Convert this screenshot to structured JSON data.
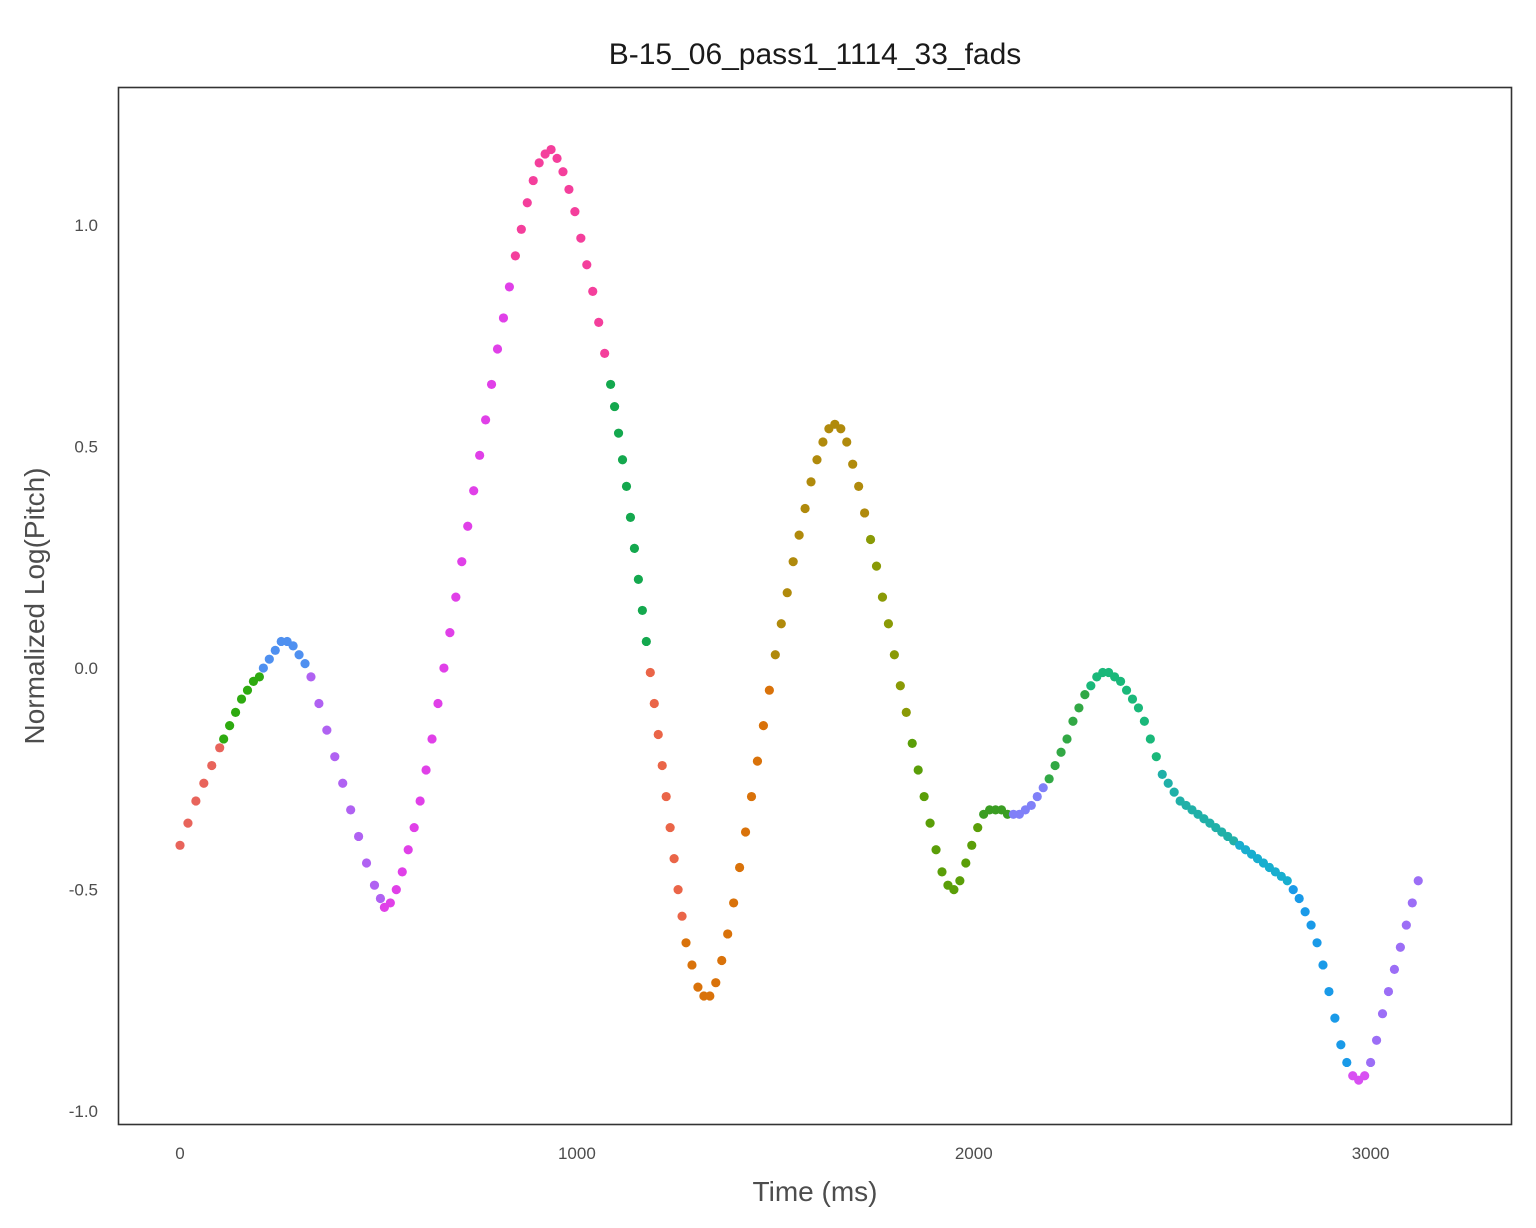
{
  "chart_data": {
    "type": "scatter",
    "title": "B-15_06_pass1_1114_33_fads",
    "xlabel": "Time (ms)",
    "ylabel": "Normalized Log(Pitch)",
    "xlim": [
      -155,
      3355
    ],
    "ylim": [
      -1.03,
      1.31
    ],
    "xticks": [
      0,
      1000,
      2000,
      3000
    ],
    "xtick_labels": [
      "0",
      "1000",
      "2000",
      "3000"
    ],
    "yticks": [
      -1.0,
      -0.5,
      0.0,
      0.5,
      1.0
    ],
    "ytick_labels": [
      "-1.0",
      "-0.5",
      "0.0",
      "0.5",
      "1.0"
    ],
    "grid": false,
    "legend": "none",
    "series": [
      {
        "color": "#e8645b",
        "points": [
          [
            0,
            -0.4
          ],
          [
            20,
            -0.35
          ],
          [
            40,
            -0.3
          ],
          [
            60,
            -0.26
          ],
          [
            80,
            -0.22
          ],
          [
            100,
            -0.18
          ]
        ]
      },
      {
        "color": "#2eaa10",
        "points": [
          [
            110,
            -0.16
          ],
          [
            125,
            -0.13
          ],
          [
            140,
            -0.1
          ],
          [
            155,
            -0.07
          ],
          [
            170,
            -0.05
          ],
          [
            185,
            -0.03
          ],
          [
            200,
            -0.02
          ]
        ]
      },
      {
        "color": "#4f90f0",
        "points": [
          [
            210,
            0.0
          ],
          [
            225,
            0.02
          ],
          [
            240,
            0.04
          ],
          [
            255,
            0.06
          ],
          [
            270,
            0.06
          ],
          [
            285,
            0.05
          ],
          [
            300,
            0.03
          ],
          [
            315,
            0.01
          ]
        ]
      },
      {
        "color": "#b062f2",
        "points": [
          [
            330,
            -0.02
          ],
          [
            350,
            -0.08
          ],
          [
            370,
            -0.14
          ],
          [
            390,
            -0.2
          ],
          [
            410,
            -0.26
          ],
          [
            430,
            -0.32
          ],
          [
            450,
            -0.38
          ],
          [
            470,
            -0.44
          ],
          [
            490,
            -0.49
          ],
          [
            505,
            -0.52
          ]
        ]
      },
      {
        "color": "#e040e8",
        "points": [
          [
            515,
            -0.54
          ],
          [
            530,
            -0.53
          ],
          [
            545,
            -0.5
          ],
          [
            560,
            -0.46
          ],
          [
            575,
            -0.41
          ],
          [
            590,
            -0.36
          ],
          [
            605,
            -0.3
          ],
          [
            620,
            -0.23
          ],
          [
            635,
            -0.16
          ],
          [
            650,
            -0.08
          ],
          [
            665,
            0.0
          ],
          [
            680,
            0.08
          ],
          [
            695,
            0.16
          ],
          [
            710,
            0.24
          ],
          [
            725,
            0.32
          ],
          [
            740,
            0.4
          ],
          [
            755,
            0.48
          ],
          [
            770,
            0.56
          ],
          [
            785,
            0.64
          ],
          [
            800,
            0.72
          ],
          [
            815,
            0.79
          ],
          [
            830,
            0.86
          ]
        ]
      },
      {
        "color": "#f43f9c",
        "points": [
          [
            845,
            0.93
          ],
          [
            860,
            0.99
          ],
          [
            875,
            1.05
          ],
          [
            890,
            1.1
          ],
          [
            905,
            1.14
          ],
          [
            920,
            1.16
          ],
          [
            935,
            1.17
          ],
          [
            950,
            1.15
          ],
          [
            965,
            1.12
          ],
          [
            980,
            1.08
          ],
          [
            995,
            1.03
          ],
          [
            1010,
            0.97
          ],
          [
            1025,
            0.91
          ],
          [
            1040,
            0.85
          ],
          [
            1055,
            0.78
          ],
          [
            1070,
            0.71
          ]
        ]
      },
      {
        "color": "#14a84e",
        "points": [
          [
            1085,
            0.64
          ],
          [
            1095,
            0.59
          ],
          [
            1105,
            0.53
          ],
          [
            1115,
            0.47
          ],
          [
            1125,
            0.41
          ],
          [
            1135,
            0.34
          ],
          [
            1145,
            0.27
          ],
          [
            1155,
            0.2
          ],
          [
            1165,
            0.13
          ],
          [
            1175,
            0.06
          ]
        ]
      },
      {
        "color": "#ea6548",
        "points": [
          [
            1185,
            -0.01
          ],
          [
            1195,
            -0.08
          ],
          [
            1205,
            -0.15
          ],
          [
            1215,
            -0.22
          ],
          [
            1225,
            -0.29
          ],
          [
            1235,
            -0.36
          ],
          [
            1245,
            -0.43
          ],
          [
            1255,
            -0.5
          ],
          [
            1265,
            -0.56
          ]
        ]
      },
      {
        "color": "#d9720a",
        "points": [
          [
            1275,
            -0.62
          ],
          [
            1290,
            -0.67
          ],
          [
            1305,
            -0.72
          ],
          [
            1320,
            -0.74
          ],
          [
            1335,
            -0.74
          ],
          [
            1350,
            -0.71
          ],
          [
            1365,
            -0.66
          ],
          [
            1380,
            -0.6
          ],
          [
            1395,
            -0.53
          ],
          [
            1410,
            -0.45
          ],
          [
            1425,
            -0.37
          ],
          [
            1440,
            -0.29
          ],
          [
            1455,
            -0.21
          ],
          [
            1470,
            -0.13
          ],
          [
            1485,
            -0.05
          ]
        ]
      },
      {
        "color": "#b08a0c",
        "points": [
          [
            1500,
            0.03
          ],
          [
            1515,
            0.1
          ],
          [
            1530,
            0.17
          ],
          [
            1545,
            0.24
          ],
          [
            1560,
            0.3
          ],
          [
            1575,
            0.36
          ],
          [
            1590,
            0.42
          ],
          [
            1605,
            0.47
          ],
          [
            1620,
            0.51
          ],
          [
            1635,
            0.54
          ],
          [
            1650,
            0.55
          ],
          [
            1665,
            0.54
          ],
          [
            1680,
            0.51
          ],
          [
            1695,
            0.46
          ],
          [
            1710,
            0.41
          ],
          [
            1725,
            0.35
          ]
        ]
      },
      {
        "color": "#8a9a06",
        "points": [
          [
            1740,
            0.29
          ],
          [
            1755,
            0.23
          ],
          [
            1770,
            0.16
          ],
          [
            1785,
            0.1
          ],
          [
            1800,
            0.03
          ],
          [
            1815,
            -0.04
          ],
          [
            1830,
            -0.1
          ]
        ]
      },
      {
        "color": "#5a9e08",
        "points": [
          [
            1845,
            -0.17
          ],
          [
            1860,
            -0.23
          ],
          [
            1875,
            -0.29
          ],
          [
            1890,
            -0.35
          ],
          [
            1905,
            -0.41
          ],
          [
            1920,
            -0.46
          ],
          [
            1935,
            -0.49
          ],
          [
            1950,
            -0.5
          ],
          [
            1965,
            -0.48
          ],
          [
            1980,
            -0.44
          ],
          [
            1995,
            -0.4
          ],
          [
            2010,
            -0.36
          ]
        ]
      },
      {
        "color": "#3a9d22",
        "points": [
          [
            2025,
            -0.33
          ],
          [
            2040,
            -0.32
          ],
          [
            2055,
            -0.32
          ],
          [
            2070,
            -0.32
          ],
          [
            2085,
            -0.33
          ]
        ]
      },
      {
        "color": "#8080f8",
        "points": [
          [
            2100,
            -0.33
          ],
          [
            2115,
            -0.33
          ],
          [
            2130,
            -0.32
          ],
          [
            2145,
            -0.31
          ],
          [
            2160,
            -0.29
          ],
          [
            2175,
            -0.27
          ]
        ]
      },
      {
        "color": "#32a845",
        "points": [
          [
            2190,
            -0.25
          ],
          [
            2205,
            -0.22
          ],
          [
            2220,
            -0.19
          ],
          [
            2235,
            -0.16
          ],
          [
            2250,
            -0.12
          ],
          [
            2265,
            -0.09
          ],
          [
            2280,
            -0.06
          ]
        ]
      },
      {
        "color": "#1ab87a",
        "points": [
          [
            2295,
            -0.04
          ],
          [
            2310,
            -0.02
          ],
          [
            2325,
            -0.01
          ],
          [
            2340,
            -0.01
          ],
          [
            2355,
            -0.02
          ],
          [
            2370,
            -0.03
          ],
          [
            2385,
            -0.05
          ],
          [
            2400,
            -0.07
          ],
          [
            2415,
            -0.09
          ],
          [
            2430,
            -0.12
          ],
          [
            2445,
            -0.16
          ],
          [
            2460,
            -0.2
          ]
        ]
      },
      {
        "color": "#20b0a8",
        "points": [
          [
            2475,
            -0.24
          ],
          [
            2490,
            -0.26
          ],
          [
            2505,
            -0.28
          ],
          [
            2520,
            -0.3
          ],
          [
            2535,
            -0.31
          ],
          [
            2550,
            -0.32
          ],
          [
            2565,
            -0.33
          ],
          [
            2580,
            -0.34
          ],
          [
            2595,
            -0.35
          ],
          [
            2610,
            -0.36
          ],
          [
            2625,
            -0.37
          ],
          [
            2640,
            -0.38
          ],
          [
            2655,
            -0.39
          ]
        ]
      },
      {
        "color": "#18aecf",
        "points": [
          [
            2670,
            -0.4
          ],
          [
            2685,
            -0.41
          ],
          [
            2700,
            -0.42
          ],
          [
            2715,
            -0.43
          ],
          [
            2730,
            -0.44
          ],
          [
            2745,
            -0.45
          ],
          [
            2760,
            -0.46
          ],
          [
            2775,
            -0.47
          ],
          [
            2790,
            -0.48
          ]
        ]
      },
      {
        "color": "#1a9ae8",
        "points": [
          [
            2805,
            -0.5
          ],
          [
            2820,
            -0.52
          ],
          [
            2835,
            -0.55
          ],
          [
            2850,
            -0.58
          ],
          [
            2865,
            -0.62
          ],
          [
            2880,
            -0.67
          ],
          [
            2895,
            -0.73
          ],
          [
            2910,
            -0.79
          ],
          [
            2925,
            -0.85
          ],
          [
            2940,
            -0.89
          ]
        ]
      },
      {
        "color": "#d850f2",
        "points": [
          [
            2955,
            -0.92
          ],
          [
            2970,
            -0.93
          ],
          [
            2985,
            -0.92
          ]
        ]
      },
      {
        "color": "#9c6ef6",
        "points": [
          [
            3000,
            -0.89
          ],
          [
            3015,
            -0.84
          ],
          [
            3030,
            -0.78
          ],
          [
            3045,
            -0.73
          ],
          [
            3060,
            -0.68
          ],
          [
            3075,
            -0.63
          ],
          [
            3090,
            -0.58
          ],
          [
            3105,
            -0.53
          ],
          [
            3120,
            -0.48
          ]
        ]
      }
    ]
  }
}
